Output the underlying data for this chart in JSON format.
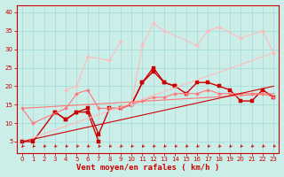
{
  "xlabel": "Vent moyen/en rafales ( km/h )",
  "xlim": [
    -0.5,
    23.5
  ],
  "ylim": [
    2,
    42
  ],
  "yticks": [
    5,
    10,
    15,
    20,
    25,
    30,
    35,
    40
  ],
  "xticks": [
    0,
    1,
    2,
    3,
    4,
    5,
    6,
    7,
    8,
    9,
    10,
    11,
    12,
    13,
    14,
    15,
    16,
    17,
    18,
    19,
    20,
    21,
    22,
    23
  ],
  "bg_color": "#cceee8",
  "grid_color": "#aaddda",
  "series": [
    {
      "x": [
        0,
        1,
        3,
        4,
        5,
        6,
        7
      ],
      "y": [
        5,
        5,
        13,
        11,
        13,
        13,
        5
      ],
      "color": "#cc0000",
      "marker": "s",
      "markersize": 2.5,
      "linewidth": 1.0
    },
    {
      "x": [
        3,
        4,
        5,
        6,
        7,
        8,
        9,
        10,
        11,
        12,
        13,
        14
      ],
      "y": [
        13,
        11,
        13,
        14,
        7,
        14,
        14,
        15,
        21,
        25,
        21,
        20
      ],
      "color": "#cc0000",
      "marker": "s",
      "markersize": 2.5,
      "linewidth": 1.0
    },
    {
      "x": [
        10,
        11,
        12,
        13,
        14,
        15,
        16,
        17,
        18,
        19,
        20,
        21,
        22,
        23
      ],
      "y": [
        15,
        21,
        24,
        21,
        20,
        18,
        21,
        21,
        20,
        19,
        16,
        16,
        19,
        17
      ],
      "color": "#cc0000",
      "marker": "s",
      "markersize": 2.5,
      "linewidth": 1.0
    },
    {
      "x": [
        0,
        1,
        4,
        5,
        6,
        7,
        8,
        9,
        10,
        11,
        12,
        13,
        14,
        15,
        16,
        17,
        18,
        19,
        20,
        21,
        22,
        23
      ],
      "y": [
        14,
        10,
        14,
        18,
        19,
        14,
        14,
        14,
        15,
        16,
        17,
        17,
        18,
        18,
        18,
        19,
        18,
        18,
        18,
        18,
        18,
        17
      ],
      "color": "#ff7777",
      "marker": "D",
      "markersize": 2.0,
      "linewidth": 0.8
    },
    {
      "x": [
        4,
        5,
        6,
        8,
        9
      ],
      "y": [
        19,
        20,
        28,
        27,
        32
      ],
      "color": "#ffbbbb",
      "marker": "D",
      "markersize": 2.0,
      "linewidth": 0.8
    },
    {
      "x": [
        10,
        11,
        12,
        13,
        16,
        17,
        18,
        20,
        22,
        23
      ],
      "y": [
        15,
        31,
        37,
        35,
        31,
        35,
        36,
        33,
        35,
        29
      ],
      "color": "#ffbbbb",
      "marker": "D",
      "markersize": 2.0,
      "linewidth": 0.8
    },
    {
      "x": [
        0,
        23
      ],
      "y": [
        5,
        29
      ],
      "color": "#ffbbbb",
      "marker": null,
      "markersize": 0,
      "linewidth": 0.8
    },
    {
      "x": [
        0,
        23
      ],
      "y": [
        14,
        18
      ],
      "color": "#ff7777",
      "marker": null,
      "markersize": 0,
      "linewidth": 0.8
    },
    {
      "x": [
        0,
        23
      ],
      "y": [
        5,
        20
      ],
      "color": "#cc0000",
      "marker": null,
      "markersize": 0,
      "linewidth": 0.8
    }
  ],
  "xlabel_fontsize": 6.5,
  "tick_fontsize": 5.0
}
